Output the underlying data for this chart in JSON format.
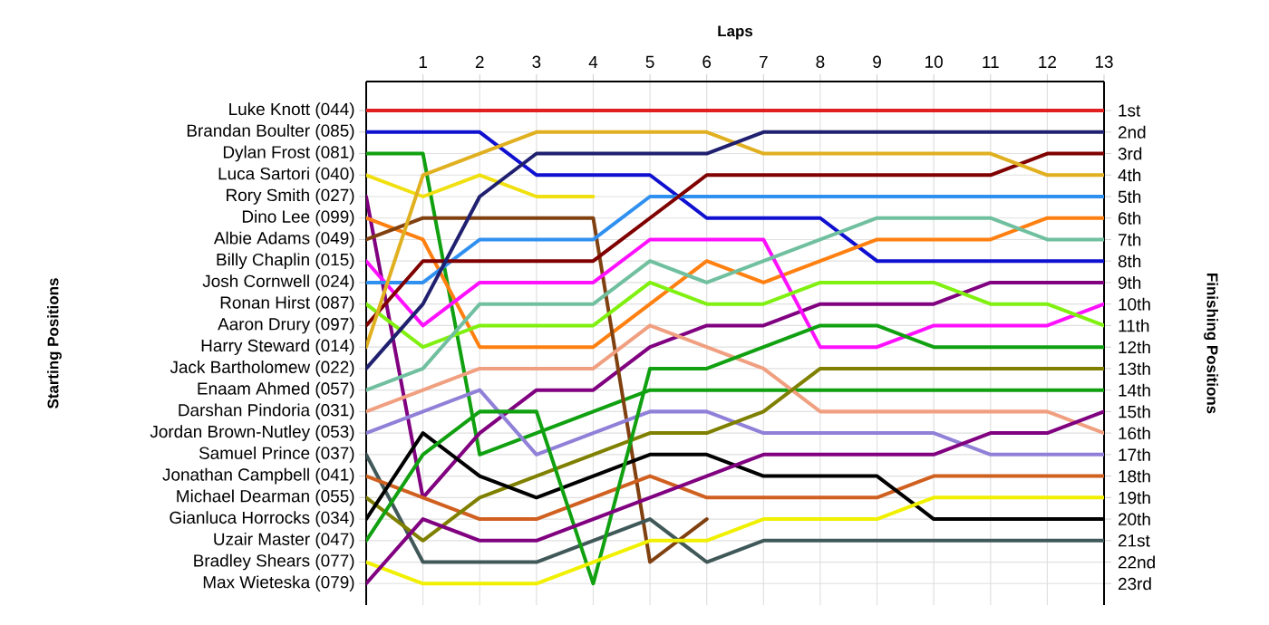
{
  "chart_data": {
    "type": "line",
    "xlabel": "Laps",
    "ylabel": "Finishing Positions",
    "annotations": [
      "Starting Positions"
    ],
    "x": [
      0,
      1,
      2,
      3,
      4,
      5,
      6,
      7,
      8,
      9,
      10,
      11,
      12,
      13
    ],
    "xlim": [
      0,
      13
    ],
    "xticks": [
      1,
      2,
      3,
      4,
      5,
      6,
      7,
      8,
      9,
      10,
      11,
      12,
      13
    ],
    "ylim": [
      24,
      -0.35
    ],
    "yticks": [
      {
        "value": 1,
        "label": "1st"
      },
      {
        "value": 2,
        "label": "2nd"
      },
      {
        "value": 3,
        "label": "3rd"
      },
      {
        "value": 4,
        "label": "4th"
      },
      {
        "value": 5,
        "label": "5th"
      },
      {
        "value": 6,
        "label": "6th"
      },
      {
        "value": 7,
        "label": "7th"
      },
      {
        "value": 8,
        "label": "8th"
      },
      {
        "value": 9,
        "label": "9th"
      },
      {
        "value": 10,
        "label": "10th"
      },
      {
        "value": 11,
        "label": "11th"
      },
      {
        "value": 12,
        "label": "12th"
      },
      {
        "value": 13,
        "label": "13th"
      },
      {
        "value": 14,
        "label": "14th"
      },
      {
        "value": 15,
        "label": "15th"
      },
      {
        "value": 16,
        "label": "16th"
      },
      {
        "value": 17,
        "label": "17th"
      },
      {
        "value": 18,
        "label": "18th"
      },
      {
        "value": 19,
        "label": "19th"
      },
      {
        "value": 20,
        "label": "20th"
      },
      {
        "value": 21,
        "label": "21st"
      },
      {
        "value": 22,
        "label": "22nd"
      },
      {
        "value": 23,
        "label": "23rd"
      }
    ],
    "grid": true,
    "series": [
      {
        "name": "Luke Knott (044)",
        "color": "#e02020",
        "values": [
          1,
          1,
          1,
          1,
          1,
          1,
          1,
          1,
          1,
          1,
          1,
          1,
          1,
          1
        ]
      },
      {
        "name": "Brandan Boulter (085)",
        "color": "#1010d0",
        "values": [
          2,
          2,
          2,
          4,
          4,
          4,
          6,
          6,
          6,
          8,
          8,
          8,
          8,
          8
        ]
      },
      {
        "name": "Dylan Frost (081)",
        "color": "#10a010",
        "values": [
          3,
          3,
          17,
          16,
          15,
          14,
          14,
          14,
          14,
          14,
          14,
          14,
          14,
          14
        ]
      },
      {
        "name": "Luca Sartori (040)",
        "color": "#f0e010",
        "values": [
          4,
          5,
          4,
          5,
          5,
          null,
          null,
          null,
          null,
          null,
          null,
          null,
          null,
          null
        ]
      },
      {
        "name": "Rory Smith (027)",
        "color": "#800080",
        "values": [
          5,
          19,
          16,
          14,
          14,
          12,
          11,
          11,
          10,
          10,
          10,
          9,
          9,
          9
        ]
      },
      {
        "name": "Dino Lee (099)",
        "color": "#ff8010",
        "values": [
          6,
          7,
          12,
          12,
          12,
          10,
          8,
          9,
          8,
          7,
          7,
          7,
          6,
          6
        ]
      },
      {
        "name": "Albie Adams (049)",
        "color": "#804010",
        "values": [
          7,
          6,
          6,
          6,
          6,
          22,
          20,
          null,
          null,
          null,
          null,
          null,
          null,
          null
        ]
      },
      {
        "name": "Billy Chaplin (015)",
        "color": "#ff10ff",
        "values": [
          8,
          11,
          9,
          9,
          9,
          7,
          7,
          7,
          12,
          12,
          11,
          11,
          11,
          10
        ]
      },
      {
        "name": "Josh Cornwell (024)",
        "color": "#3090f0",
        "values": [
          9,
          9,
          7,
          7,
          7,
          5,
          5,
          5,
          5,
          5,
          5,
          5,
          5,
          5
        ]
      },
      {
        "name": "Ronan Hirst (087)",
        "color": "#80f010",
        "values": [
          10,
          12,
          11,
          11,
          11,
          9,
          10,
          10,
          9,
          9,
          9,
          10,
          10,
          11
        ]
      },
      {
        "name": "Aaron Drury (097)",
        "color": "#800000",
        "values": [
          11,
          8,
          8,
          8,
          8,
          6,
          4,
          4,
          4,
          4,
          4,
          4,
          3,
          3
        ]
      },
      {
        "name": "Harry Steward (014)",
        "color": "#e0b020",
        "values": [
          12,
          4,
          3,
          2,
          2,
          2,
          2,
          3,
          3,
          3,
          3,
          3,
          4,
          4
        ]
      },
      {
        "name": "Jack Bartholomew (022)",
        "color": "#202070",
        "values": [
          13,
          10,
          5,
          3,
          3,
          3,
          3,
          2,
          2,
          2,
          2,
          2,
          2,
          2
        ]
      },
      {
        "name": "Enaam Ahmed (057)",
        "color": "#70c0a0",
        "values": [
          14,
          13,
          10,
          10,
          10,
          8,
          9,
          8,
          7,
          6,
          6,
          6,
          7,
          7
        ]
      },
      {
        "name": "Darshan Pindoria (031)",
        "color": "#f0a080",
        "values": [
          15,
          14,
          13,
          13,
          13,
          11,
          12,
          13,
          15,
          15,
          15,
          15,
          15,
          16
        ]
      },
      {
        "name": "Jordan Brown-Nutley (053)",
        "color": "#9080d8",
        "values": [
          16,
          15,
          14,
          17,
          16,
          15,
          15,
          16,
          16,
          16,
          16,
          17,
          17,
          17
        ]
      },
      {
        "name": "Samuel Prince (037)",
        "color": "#405858",
        "values": [
          17,
          22,
          22,
          22,
          21,
          20,
          22,
          21,
          21,
          21,
          21,
          21,
          21,
          21
        ]
      },
      {
        "name": "Jonathan Campbell (041)",
        "color": "#d06020",
        "values": [
          18,
          19,
          20,
          20,
          19,
          18,
          19,
          19,
          19,
          19,
          18,
          18,
          18,
          18
        ]
      },
      {
        "name": "Michael Dearman (055)",
        "color": "#808000",
        "values": [
          19,
          21,
          19,
          18,
          17,
          16,
          16,
          15,
          13,
          13,
          13,
          13,
          13,
          13
        ]
      },
      {
        "name": "Gianluca Horrocks (034)",
        "color": "#000000",
        "values": [
          20,
          16,
          18,
          19,
          18,
          17,
          17,
          18,
          18,
          18,
          20,
          20,
          20,
          20
        ]
      },
      {
        "name": "Uzair Master (047)",
        "color": "#10a010",
        "values": [
          21,
          17,
          15,
          15,
          23,
          13,
          13,
          12,
          11,
          11,
          12,
          12,
          12,
          12
        ]
      },
      {
        "name": "Bradley Shears (077)",
        "color": "#f0f000",
        "values": [
          22,
          23,
          23,
          23,
          22,
          21,
          21,
          20,
          20,
          20,
          19,
          19,
          19,
          19
        ]
      },
      {
        "name": "Max Wieteska (079)",
        "color": "#800080",
        "values": [
          23,
          20,
          21,
          21,
          20,
          19,
          18,
          17,
          17,
          17,
          17,
          16,
          16,
          15
        ]
      }
    ]
  }
}
